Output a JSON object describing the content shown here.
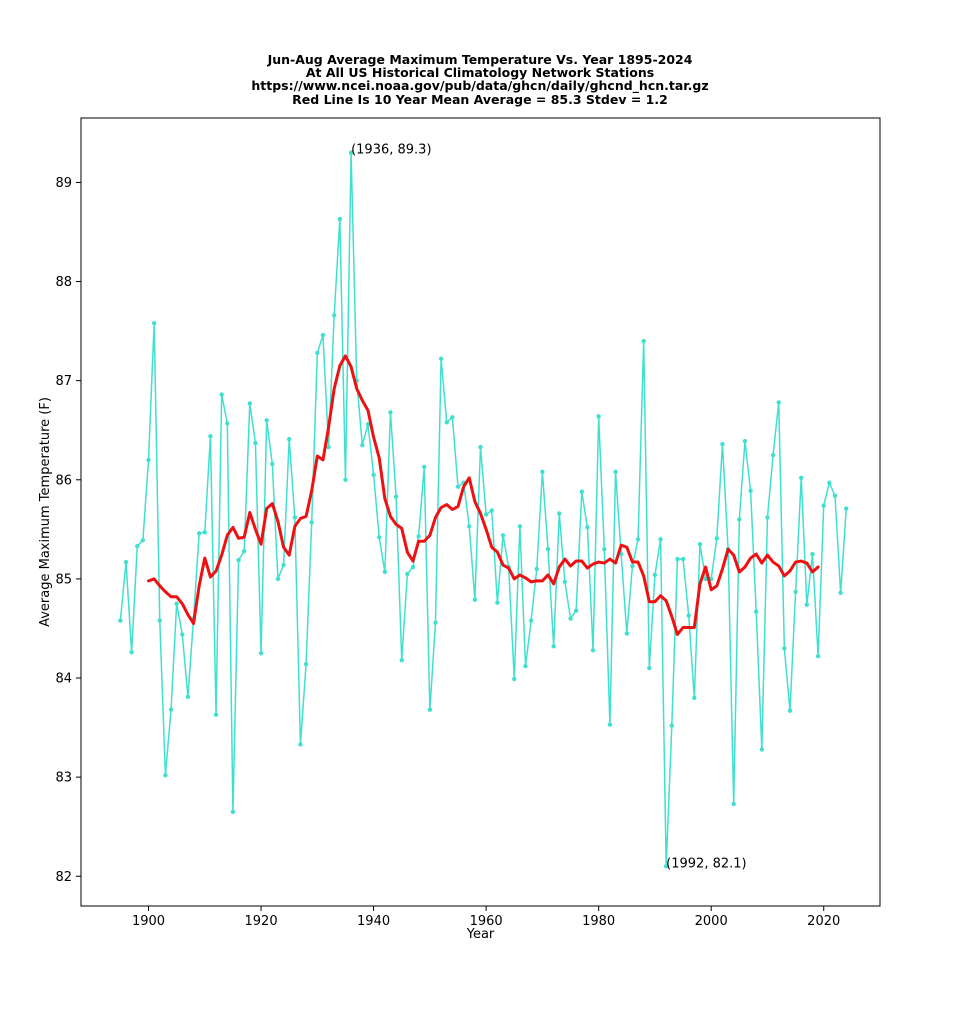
{
  "chart_data": {
    "type": "line",
    "title_lines": [
      "Jun-Aug Average Maximum Temperature Vs. Year 1895-2024",
      "At All US Historical Climatology Network Stations",
      "https://www.ncei.noaa.gov/pub/data/ghcn/daily/ghcnd_hcn.tar.gz",
      "Red Line Is 10 Year Mean  Average = 85.3 Stdev = 1.2"
    ],
    "xlabel": "Year",
    "ylabel": "Average Maximum Temperature (F)",
    "xlim": [
      1888,
      2030
    ],
    "ylim": [
      81.7,
      89.65
    ],
    "xticks": [
      1900,
      1920,
      1940,
      1960,
      1980,
      2000,
      2020
    ],
    "yticks": [
      82,
      83,
      84,
      85,
      86,
      87,
      88,
      89
    ],
    "grid": false,
    "annotations": [
      {
        "text": "(1936, 89.3)",
        "x": 1936,
        "y": 89.3
      },
      {
        "text": "(1992, 82.1)",
        "x": 1992,
        "y": 82.1
      }
    ],
    "series": [
      {
        "color": "#40e0d0",
        "marker": "dot",
        "x": [
          1895,
          1896,
          1897,
          1898,
          1899,
          1900,
          1901,
          1902,
          1903,
          1904,
          1905,
          1906,
          1907,
          1908,
          1909,
          1910,
          1911,
          1912,
          1913,
          1914,
          1915,
          1916,
          1917,
          1918,
          1919,
          1920,
          1921,
          1922,
          1923,
          1924,
          1925,
          1926,
          1927,
          1928,
          1929,
          1930,
          1931,
          1932,
          1933,
          1934,
          1935,
          1936,
          1937,
          1938,
          1939,
          1940,
          1941,
          1942,
          1943,
          1944,
          1945,
          1946,
          1947,
          1948,
          1949,
          1950,
          1951,
          1952,
          1953,
          1954,
          1955,
          1956,
          1957,
          1958,
          1959,
          1960,
          1961,
          1962,
          1963,
          1964,
          1965,
          1966,
          1967,
          1968,
          1969,
          1970,
          1971,
          1972,
          1973,
          1974,
          1975,
          1976,
          1977,
          1978,
          1979,
          1980,
          1981,
          1982,
          1983,
          1984,
          1985,
          1986,
          1987,
          1988,
          1989,
          1990,
          1991,
          1992,
          1993,
          1994,
          1995,
          1996,
          1997,
          1998,
          1999,
          2000,
          2001,
          2002,
          2003,
          2004,
          2005,
          2006,
          2007,
          2008,
          2009,
          2010,
          2011,
          2012,
          2013,
          2014,
          2015,
          2016,
          2017,
          2018,
          2019,
          2020,
          2021,
          2022,
          2023,
          2024
        ],
        "values": [
          84.58,
          85.17,
          84.26,
          85.33,
          85.39,
          86.2,
          87.58,
          84.58,
          83.02,
          83.68,
          84.75,
          84.44,
          83.81,
          84.6,
          85.46,
          85.47,
          86.44,
          83.63,
          86.86,
          86.57,
          82.65,
          85.19,
          85.28,
          86.77,
          86.37,
          84.25,
          86.6,
          86.16,
          85.0,
          85.14,
          86.41,
          85.62,
          83.33,
          84.14,
          85.57,
          87.28,
          87.46,
          86.33,
          87.66,
          88.63,
          86.0,
          89.3,
          87.0,
          86.35,
          86.56,
          86.05,
          85.42,
          85.07,
          86.68,
          85.83,
          84.18,
          85.05,
          85.12,
          85.43,
          86.13,
          83.68,
          84.56,
          87.22,
          86.58,
          86.63,
          85.93,
          85.97,
          85.53,
          84.79,
          86.33,
          85.65,
          85.69,
          84.76,
          85.44,
          85.12,
          83.99,
          85.53,
          84.12,
          84.58,
          85.1,
          86.08,
          85.3,
          84.32,
          85.66,
          84.97,
          84.6,
          84.68,
          85.88,
          85.52,
          84.28,
          86.64,
          85.3,
          83.53,
          86.08,
          85.25,
          84.45,
          85.13,
          85.4,
          87.4,
          84.1,
          85.04,
          85.4,
          82.1,
          83.52,
          85.2,
          85.2,
          84.63,
          83.8,
          85.35,
          85.0,
          85.0,
          85.41,
          86.36,
          85.3,
          82.73,
          85.6,
          86.39,
          85.89,
          84.67,
          83.28,
          85.62,
          86.25,
          86.78,
          84.3,
          83.67,
          84.87,
          86.02,
          84.74,
          85.25,
          84.22,
          85.74,
          85.97,
          85.84,
          84.86,
          85.71
        ]
      },
      {
        "color": "#ee1111",
        "marker": "none",
        "x": [
          1900,
          1901,
          1902,
          1903,
          1904,
          1905,
          1906,
          1907,
          1908,
          1909,
          1910,
          1911,
          1912,
          1913,
          1914,
          1915,
          1916,
          1917,
          1918,
          1919,
          1920,
          1921,
          1922,
          1923,
          1924,
          1925,
          1926,
          1927,
          1928,
          1929,
          1930,
          1931,
          1932,
          1933,
          1934,
          1935,
          1936,
          1937,
          1938,
          1939,
          1940,
          1941,
          1942,
          1943,
          1944,
          1945,
          1946,
          1947,
          1948,
          1949,
          1950,
          1951,
          1952,
          1953,
          1954,
          1955,
          1956,
          1957,
          1958,
          1959,
          1960,
          1961,
          1962,
          1963,
          1964,
          1965,
          1966,
          1967,
          1968,
          1969,
          1970,
          1971,
          1972,
          1973,
          1974,
          1975,
          1976,
          1977,
          1978,
          1979,
          1980,
          1981,
          1982,
          1983,
          1984,
          1985,
          1986,
          1987,
          1988,
          1989,
          1990,
          1991,
          1992,
          1993,
          1994,
          1995,
          1996,
          1997,
          1998,
          1999,
          2000,
          2001,
          2002,
          2003,
          2004,
          2005,
          2006,
          2007,
          2008,
          2009,
          2010,
          2011,
          2012,
          2013,
          2014,
          2015,
          2016,
          2017,
          2018,
          2019
        ],
        "values": [
          84.98,
          85.0,
          84.93,
          84.87,
          84.82,
          84.82,
          84.75,
          84.64,
          84.55,
          84.93,
          85.21,
          85.02,
          85.08,
          85.24,
          85.44,
          85.52,
          85.41,
          85.42,
          85.67,
          85.5,
          85.35,
          85.71,
          85.76,
          85.58,
          85.32,
          85.24,
          85.53,
          85.61,
          85.63,
          85.89,
          86.24,
          86.2,
          86.53,
          86.92,
          87.15,
          87.25,
          87.14,
          86.92,
          86.8,
          86.7,
          86.43,
          86.22,
          85.81,
          85.63,
          85.55,
          85.51,
          85.27,
          85.18,
          85.38,
          85.38,
          85.44,
          85.62,
          85.72,
          85.75,
          85.7,
          85.73,
          85.93,
          86.02,
          85.78,
          85.66,
          85.5,
          85.32,
          85.27,
          85.14,
          85.11,
          85.0,
          85.04,
          85.01,
          84.97,
          84.98,
          84.98,
          85.04,
          84.95,
          85.12,
          85.2,
          85.13,
          85.18,
          85.18,
          85.11,
          85.15,
          85.17,
          85.16,
          85.2,
          85.16,
          85.34,
          85.32,
          85.17,
          85.17,
          85.03,
          84.77,
          84.77,
          84.83,
          84.78,
          84.62,
          84.44,
          84.51,
          84.51,
          84.51,
          84.95,
          85.12,
          84.89,
          84.93,
          85.1,
          85.3,
          85.24,
          85.07,
          85.12,
          85.21,
          85.25,
          85.16,
          85.24,
          85.17,
          85.13,
          85.03,
          85.08,
          85.17,
          85.18,
          85.16,
          85.07,
          85.12
        ]
      }
    ]
  }
}
